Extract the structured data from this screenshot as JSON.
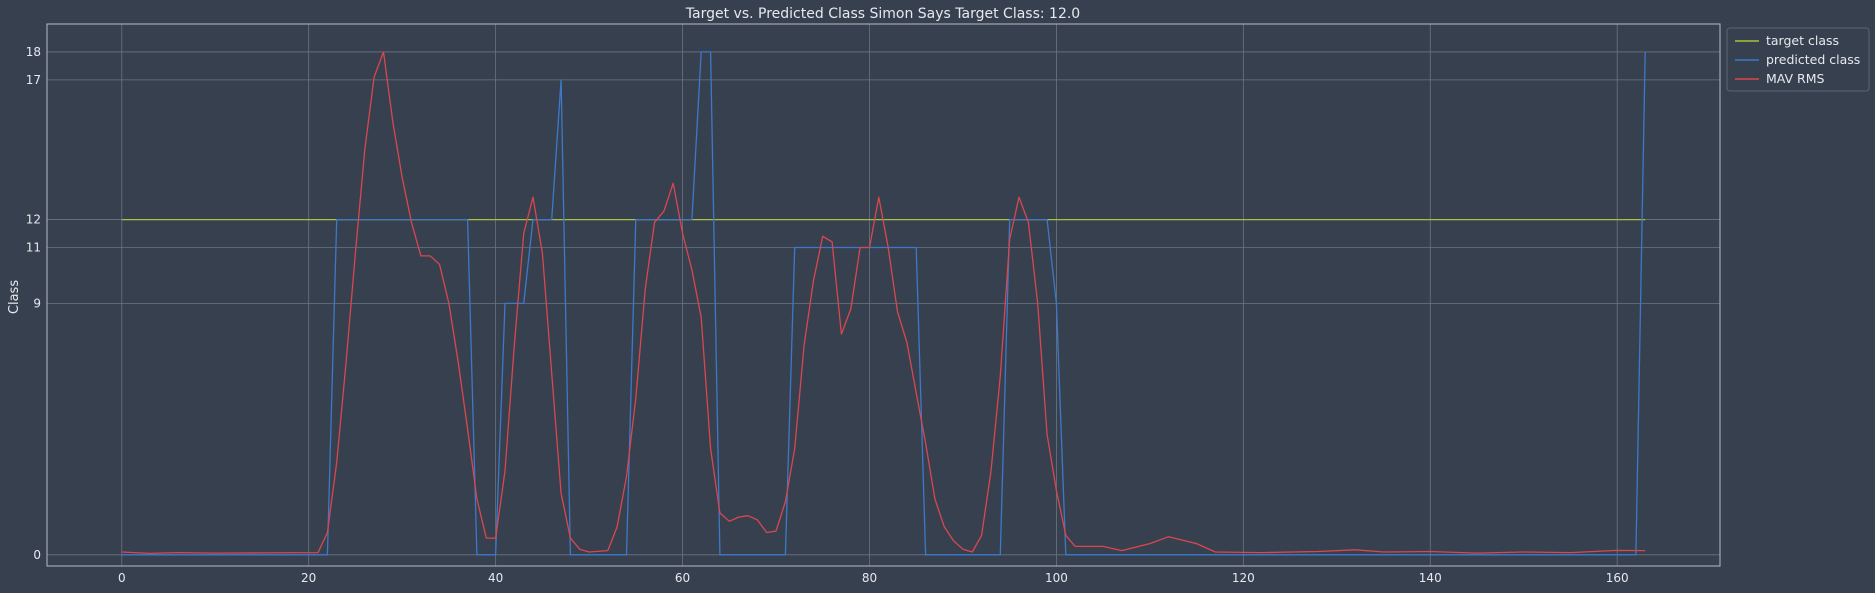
{
  "chart_data": {
    "type": "line",
    "title": "Target vs. Predicted Class Simon Says Target Class: 12.0",
    "xlabel": "",
    "ylabel": "Class",
    "xlim": [
      -8,
      171
    ],
    "ylim": [
      -0.4,
      19
    ],
    "x_ticks": [
      0,
      20,
      40,
      60,
      80,
      100,
      120,
      140,
      160
    ],
    "y_ticks": [
      0,
      9,
      11,
      12,
      17,
      18
    ],
    "grid": true,
    "legend_position": "top-right",
    "series": [
      {
        "name": "target class",
        "color": "#a9c23f",
        "points": [
          [
            0,
            12
          ],
          [
            163,
            12
          ]
        ]
      },
      {
        "name": "predicted class",
        "color": "#3d78c9",
        "points": [
          [
            0,
            0
          ],
          [
            22,
            0
          ],
          [
            23,
            12
          ],
          [
            37,
            12
          ],
          [
            38,
            0
          ],
          [
            40,
            0
          ],
          [
            41,
            9
          ],
          [
            43,
            9
          ],
          [
            44,
            12
          ],
          [
            46,
            12
          ],
          [
            47,
            17
          ],
          [
            48,
            0
          ],
          [
            54,
            0
          ],
          [
            55,
            12
          ],
          [
            61,
            12
          ],
          [
            62,
            18
          ],
          [
            63,
            18
          ],
          [
            64,
            0
          ],
          [
            71,
            0
          ],
          [
            72,
            11
          ],
          [
            85,
            11
          ],
          [
            86,
            0
          ],
          [
            94,
            0
          ],
          [
            95,
            12
          ],
          [
            99,
            12
          ],
          [
            100,
            9
          ],
          [
            101,
            0
          ],
          [
            161,
            0
          ],
          [
            162,
            0
          ],
          [
            163,
            18
          ]
        ]
      },
      {
        "name": "MAV RMS",
        "color": "#d9474f",
        "points": [
          [
            0,
            0.1
          ],
          [
            3,
            0.05
          ],
          [
            6,
            0.08
          ],
          [
            10,
            0.06
          ],
          [
            15,
            0.07
          ],
          [
            21,
            0.08
          ],
          [
            22,
            0.8
          ],
          [
            23,
            3.3
          ],
          [
            24,
            6.9
          ],
          [
            25,
            10.8
          ],
          [
            26,
            14.5
          ],
          [
            27,
            17.1
          ],
          [
            28,
            18.0
          ],
          [
            29,
            15.5
          ],
          [
            30,
            13.5
          ],
          [
            31,
            11.9
          ],
          [
            32,
            10.7
          ],
          [
            33,
            10.7
          ],
          [
            34,
            10.4
          ],
          [
            35,
            9.0
          ],
          [
            36,
            6.9
          ],
          [
            37,
            4.5
          ],
          [
            38,
            2.0
          ],
          [
            39,
            0.6
          ],
          [
            40,
            0.6
          ],
          [
            41,
            3.0
          ],
          [
            42,
            7.5
          ],
          [
            43,
            11.5
          ],
          [
            44,
            12.8
          ],
          [
            45,
            10.8
          ],
          [
            46,
            6.5
          ],
          [
            47,
            2.2
          ],
          [
            48,
            0.6
          ],
          [
            49,
            0.2
          ],
          [
            50,
            0.1
          ],
          [
            52,
            0.15
          ],
          [
            53,
            1.0
          ],
          [
            54,
            2.8
          ],
          [
            55,
            5.6
          ],
          [
            56,
            9.5
          ],
          [
            57,
            11.9
          ],
          [
            58,
            12.3
          ],
          [
            59,
            13.3
          ],
          [
            60,
            11.5
          ],
          [
            61,
            10.2
          ],
          [
            62,
            8.5
          ],
          [
            63,
            3.8
          ],
          [
            64,
            1.5
          ],
          [
            65,
            1.2
          ],
          [
            66,
            1.35
          ],
          [
            67,
            1.4
          ],
          [
            68,
            1.25
          ],
          [
            69,
            0.8
          ],
          [
            70,
            0.85
          ],
          [
            71,
            1.9
          ],
          [
            72,
            3.8
          ],
          [
            73,
            7.5
          ],
          [
            74,
            9.8
          ],
          [
            75,
            11.4
          ],
          [
            76,
            11.2
          ],
          [
            77,
            7.9
          ],
          [
            78,
            8.8
          ],
          [
            79,
            11.0
          ],
          [
            80,
            11.0
          ],
          [
            81,
            12.8
          ],
          [
            82,
            11.0
          ],
          [
            83,
            8.7
          ],
          [
            84,
            7.6
          ],
          [
            85,
            5.8
          ],
          [
            86,
            4.0
          ],
          [
            87,
            2.0
          ],
          [
            88,
            1.0
          ],
          [
            89,
            0.5
          ],
          [
            90,
            0.2
          ],
          [
            91,
            0.1
          ],
          [
            92,
            0.7
          ],
          [
            93,
            3.0
          ],
          [
            94,
            6.4
          ],
          [
            95,
            11.3
          ],
          [
            96,
            12.8
          ],
          [
            97,
            11.9
          ],
          [
            98,
            9.0
          ],
          [
            99,
            4.3
          ],
          [
            100,
            2.3
          ],
          [
            101,
            0.7
          ],
          [
            102,
            0.3
          ],
          [
            105,
            0.3
          ],
          [
            107,
            0.15
          ],
          [
            110,
            0.4
          ],
          [
            112,
            0.65
          ],
          [
            115,
            0.4
          ],
          [
            117,
            0.1
          ],
          [
            122,
            0.08
          ],
          [
            128,
            0.12
          ],
          [
            132,
            0.18
          ],
          [
            135,
            0.1
          ],
          [
            140,
            0.12
          ],
          [
            145,
            0.06
          ],
          [
            150,
            0.1
          ],
          [
            155,
            0.08
          ],
          [
            160,
            0.16
          ],
          [
            163,
            0.15
          ]
        ]
      }
    ]
  }
}
